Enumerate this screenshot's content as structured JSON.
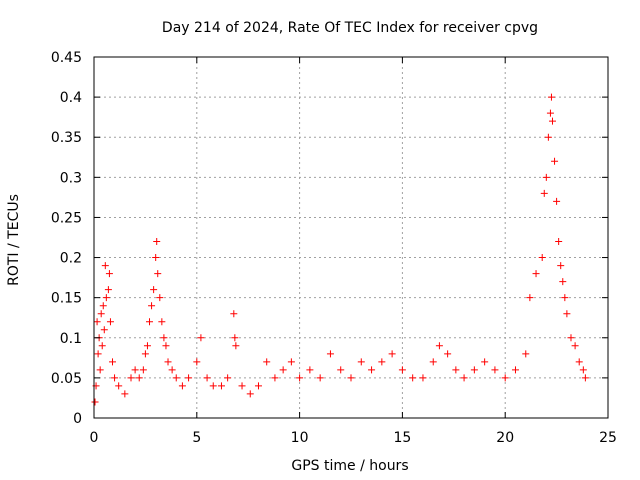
{
  "chart_data": {
    "type": "scatter",
    "title": "Day 214 of 2024, Rate Of TEC Index for receiver cpvg",
    "xlabel": "GPS time / hours",
    "ylabel": "ROTI / TECUs",
    "xlim": [
      0,
      25
    ],
    "ylim": [
      0,
      0.45
    ],
    "xticks": [
      0,
      5,
      10,
      15,
      20,
      25
    ],
    "yticks": [
      0,
      0.05,
      0.1,
      0.15,
      0.2,
      0.25,
      0.3,
      0.35,
      0.4,
      0.45
    ],
    "xtick_labels": [
      "0",
      "5",
      "10",
      "15",
      "20",
      "25"
    ],
    "ytick_labels": [
      "0",
      "0.05",
      "0.1",
      "0.15",
      "0.2",
      "0.25",
      "0.3",
      "0.35",
      "0.4",
      "0.45"
    ],
    "grid": true,
    "marker": "+",
    "series": [
      {
        "name": "ROTI",
        "color": "#ff0000",
        "points": [
          [
            0.05,
            0.02
          ],
          [
            0.1,
            0.04
          ],
          [
            0.15,
            0.12
          ],
          [
            0.2,
            0.08
          ],
          [
            0.25,
            0.1
          ],
          [
            0.3,
            0.06
          ],
          [
            0.35,
            0.13
          ],
          [
            0.4,
            0.09
          ],
          [
            0.45,
            0.14
          ],
          [
            0.5,
            0.11
          ],
          [
            0.55,
            0.19
          ],
          [
            0.6,
            0.15
          ],
          [
            0.7,
            0.16
          ],
          [
            0.75,
            0.18
          ],
          [
            0.8,
            0.12
          ],
          [
            0.9,
            0.07
          ],
          [
            1.0,
            0.05
          ],
          [
            1.2,
            0.04
          ],
          [
            1.5,
            0.03
          ],
          [
            1.8,
            0.05
          ],
          [
            2.0,
            0.06
          ],
          [
            2.2,
            0.05
          ],
          [
            2.4,
            0.06
          ],
          [
            2.5,
            0.08
          ],
          [
            2.6,
            0.09
          ],
          [
            2.7,
            0.12
          ],
          [
            2.8,
            0.14
          ],
          [
            2.9,
            0.16
          ],
          [
            3.0,
            0.2
          ],
          [
            3.05,
            0.22
          ],
          [
            3.1,
            0.18
          ],
          [
            3.2,
            0.15
          ],
          [
            3.3,
            0.12
          ],
          [
            3.4,
            0.1
          ],
          [
            3.5,
            0.09
          ],
          [
            3.6,
            0.07
          ],
          [
            3.8,
            0.06
          ],
          [
            4.0,
            0.05
          ],
          [
            4.3,
            0.04
          ],
          [
            4.6,
            0.05
          ],
          [
            5.0,
            0.07
          ],
          [
            5.2,
            0.1
          ],
          [
            5.5,
            0.05
          ],
          [
            5.8,
            0.04
          ],
          [
            6.2,
            0.04
          ],
          [
            6.5,
            0.05
          ],
          [
            6.8,
            0.13
          ],
          [
            6.85,
            0.1
          ],
          [
            6.9,
            0.09
          ],
          [
            7.2,
            0.04
          ],
          [
            7.6,
            0.03
          ],
          [
            8.0,
            0.04
          ],
          [
            8.4,
            0.07
          ],
          [
            8.8,
            0.05
          ],
          [
            9.2,
            0.06
          ],
          [
            9.6,
            0.07
          ],
          [
            10.0,
            0.05
          ],
          [
            10.5,
            0.06
          ],
          [
            11.0,
            0.05
          ],
          [
            11.5,
            0.08
          ],
          [
            12.0,
            0.06
          ],
          [
            12.5,
            0.05
          ],
          [
            13.0,
            0.07
          ],
          [
            13.5,
            0.06
          ],
          [
            14.0,
            0.07
          ],
          [
            14.5,
            0.08
          ],
          [
            15.0,
            0.06
          ],
          [
            15.5,
            0.05
          ],
          [
            16.0,
            0.05
          ],
          [
            16.5,
            0.07
          ],
          [
            16.8,
            0.09
          ],
          [
            17.2,
            0.08
          ],
          [
            17.6,
            0.06
          ],
          [
            18.0,
            0.05
          ],
          [
            18.5,
            0.06
          ],
          [
            19.0,
            0.07
          ],
          [
            19.5,
            0.06
          ],
          [
            20.0,
            0.05
          ],
          [
            20.5,
            0.06
          ],
          [
            21.0,
            0.08
          ],
          [
            21.2,
            0.15
          ],
          [
            21.5,
            0.18
          ],
          [
            21.8,
            0.2
          ],
          [
            21.9,
            0.28
          ],
          [
            22.0,
            0.3
          ],
          [
            22.1,
            0.35
          ],
          [
            22.2,
            0.38
          ],
          [
            22.25,
            0.4
          ],
          [
            22.3,
            0.37
          ],
          [
            22.4,
            0.32
          ],
          [
            22.5,
            0.27
          ],
          [
            22.6,
            0.22
          ],
          [
            22.7,
            0.19
          ],
          [
            22.8,
            0.17
          ],
          [
            22.9,
            0.15
          ],
          [
            23.0,
            0.13
          ],
          [
            23.2,
            0.1
          ],
          [
            23.4,
            0.09
          ],
          [
            23.6,
            0.07
          ],
          [
            23.8,
            0.06
          ],
          [
            23.9,
            0.05
          ]
        ]
      }
    ]
  }
}
